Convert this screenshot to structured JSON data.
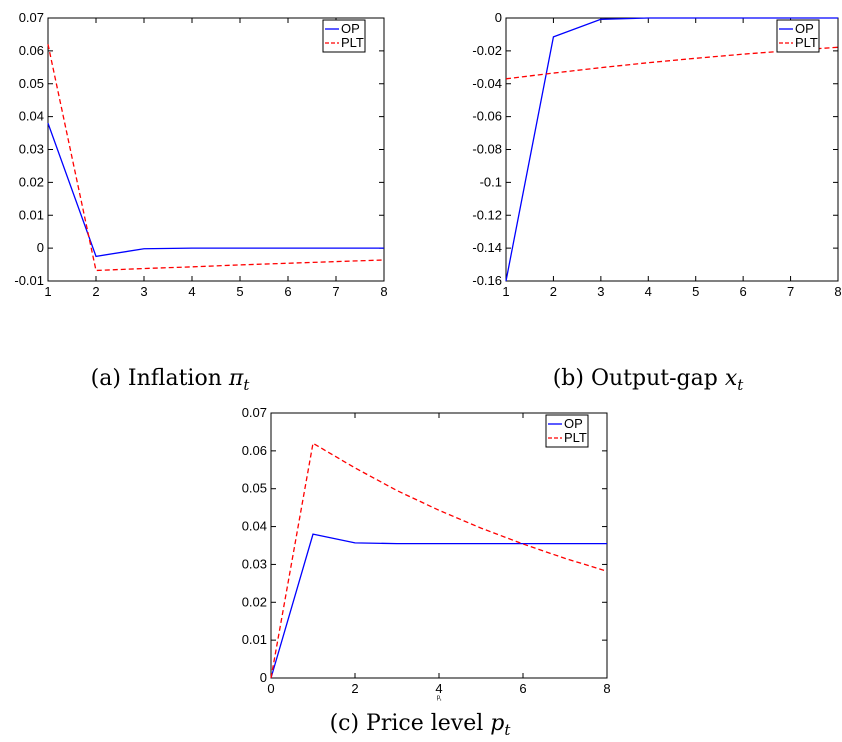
{
  "chart_data": [
    {
      "type": "line",
      "caption": {
        "prefix": "(a) Inflation ",
        "symbol": "π",
        "subscript": "t"
      },
      "xlabel": "",
      "xlim": [
        1,
        8
      ],
      "ylim": [
        -0.01,
        0.07
      ],
      "x_ticks": [
        "1",
        "2",
        "3",
        "4",
        "5",
        "6",
        "7",
        "8"
      ],
      "y_ticks": [
        "-0.01",
        "0",
        "0.01",
        "0.02",
        "0.03",
        "0.04",
        "0.05",
        "0.06",
        "0.07"
      ],
      "legend": {
        "position": "top-right",
        "entries": [
          "OP",
          "PLT"
        ]
      },
      "series": [
        {
          "name": "OP",
          "color": "#0000ff",
          "dash": "solid",
          "x": [
            1,
            2,
            3,
            4,
            5,
            6,
            7,
            8
          ],
          "y": [
            0.038,
            -0.0025,
            -0.0002,
            0.0,
            0.0,
            0.0,
            0.0,
            0.0
          ]
        },
        {
          "name": "PLT",
          "color": "#ff0000",
          "dash": "dashed",
          "x": [
            1,
            2,
            3,
            4,
            5,
            6,
            7,
            8
          ],
          "y": [
            0.062,
            -0.0068,
            -0.0062,
            -0.0057,
            -0.0051,
            -0.0046,
            -0.0041,
            -0.0036
          ]
        }
      ]
    },
    {
      "type": "line",
      "caption": {
        "prefix": "(b) Output-gap ",
        "symbol": "x",
        "subscript": "t"
      },
      "xlabel": "",
      "xlim": [
        1,
        8
      ],
      "ylim": [
        -0.16,
        0
      ],
      "x_ticks": [
        "1",
        "2",
        "3",
        "4",
        "5",
        "6",
        "7",
        "8"
      ],
      "y_ticks": [
        "-0.16",
        "-0.14",
        "-0.12",
        "-0.1",
        "-0.08",
        "-0.06",
        "-0.04",
        "-0.02",
        "0"
      ],
      "legend": {
        "position": "top-right",
        "entries": [
          "OP",
          "PLT"
        ]
      },
      "series": [
        {
          "name": "OP",
          "color": "#0000ff",
          "dash": "solid",
          "x": [
            1,
            2,
            3,
            4,
            5,
            6,
            7,
            8
          ],
          "y": [
            -0.16,
            -0.0115,
            -0.0008,
            0.0,
            0.0,
            0.0,
            0.0,
            0.0
          ]
        },
        {
          "name": "PLT",
          "color": "#ff0000",
          "dash": "dashed",
          "x": [
            1,
            2,
            3,
            4,
            5,
            6,
            7,
            8
          ],
          "y": [
            -0.037,
            -0.0335,
            -0.0302,
            -0.0272,
            -0.0245,
            -0.022,
            -0.0198,
            -0.0178
          ]
        }
      ]
    },
    {
      "type": "line",
      "caption": {
        "prefix": "(c) Price level ",
        "symbol": "p",
        "subscript": "t"
      },
      "xlabel": "p",
      "xlabel_sub": "t",
      "xlim": [
        0,
        8
      ],
      "ylim": [
        0,
        0.07
      ],
      "x_ticks": [
        "0",
        "2",
        "4",
        "6",
        "8"
      ],
      "y_ticks": [
        "0",
        "0.01",
        "0.02",
        "0.03",
        "0.04",
        "0.05",
        "0.06",
        "0.07"
      ],
      "legend": {
        "position": "top-right",
        "entries": [
          "OP",
          "PLT"
        ]
      },
      "series": [
        {
          "name": "OP",
          "color": "#0000ff",
          "dash": "solid",
          "x": [
            0,
            1,
            2,
            3,
            4,
            5,
            6,
            7,
            8
          ],
          "y": [
            0,
            0.038,
            0.0357,
            0.0355,
            0.0355,
            0.0355,
            0.0355,
            0.0355,
            0.0355
          ]
        },
        {
          "name": "PLT",
          "color": "#ff0000",
          "dash": "dashed",
          "x": [
            0,
            1,
            2,
            3,
            4,
            5,
            6,
            7,
            8
          ],
          "y": [
            0,
            0.062,
            0.0555,
            0.0495,
            0.0443,
            0.0396,
            0.0354,
            0.0316,
            0.0282
          ]
        }
      ]
    }
  ]
}
